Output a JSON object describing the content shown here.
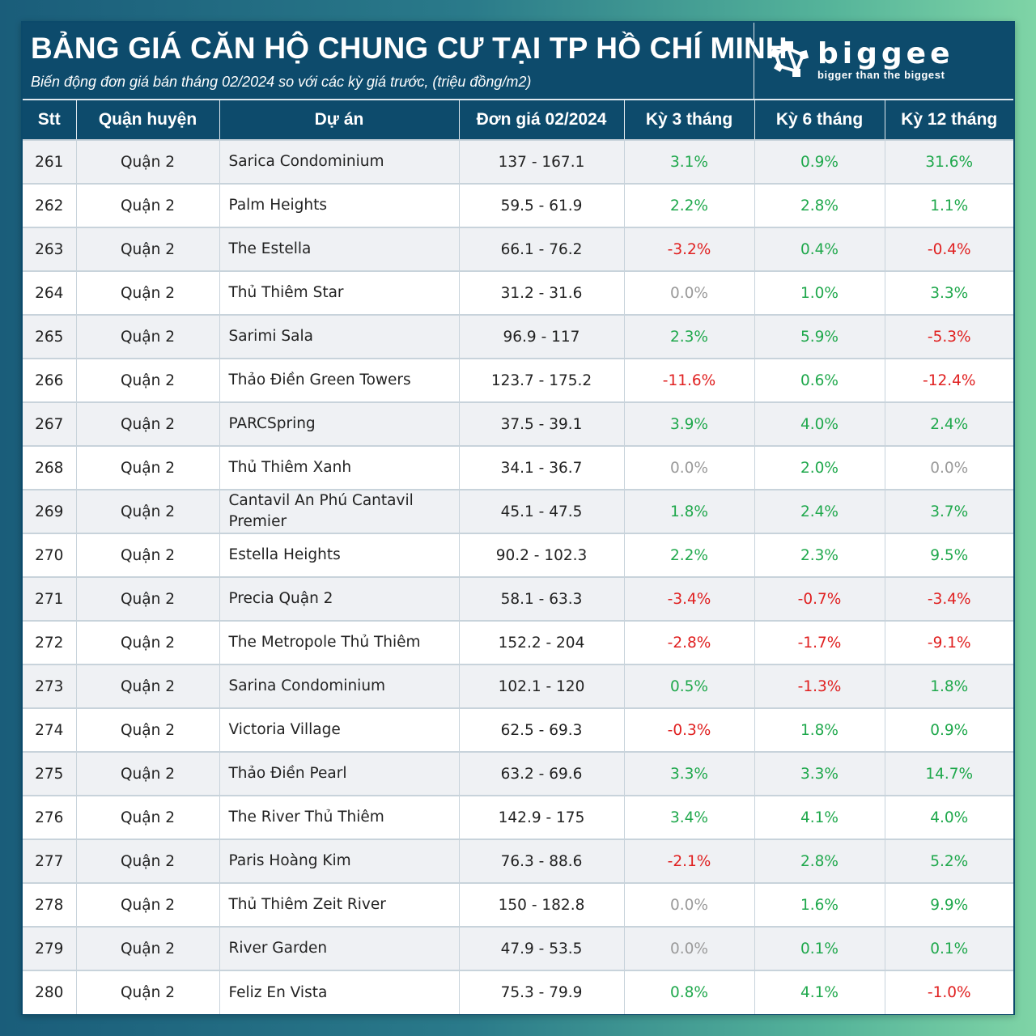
{
  "header": {
    "title": "BẢNG GIÁ CĂN HỘ CHUNG CƯ TẠI TP HỒ CHÍ MINH",
    "subtitle": "Biến động đơn giá bán tháng 02/2024 so với các kỳ giá trước, (triệu đồng/m2)",
    "brand": "biggee",
    "tagline": "bigger than the biggest",
    "logo_icon": "biggee-logo-icon"
  },
  "colors": {
    "header_bg": "#0d4b6c",
    "positive": "#1fa84c",
    "negative": "#e02020",
    "zero": "#9a9a9a",
    "row_alt": "#eff1f4"
  },
  "table": {
    "columns": [
      "Stt",
      "Quận huyện",
      "Dự án",
      "Đơn giá 02/2024",
      "Kỳ 3 tháng",
      "Kỳ 6 tháng",
      "Kỳ 12 tháng"
    ],
    "rows": [
      [
        "261",
        "Quận 2",
        "Sarica Condominium",
        "137 - 167.1",
        "3.1%",
        "0.9%",
        "31.6%"
      ],
      [
        "262",
        "Quận 2",
        "Palm Heights",
        "59.5 - 61.9",
        "2.2%",
        "2.8%",
        "1.1%"
      ],
      [
        "263",
        "Quận 2",
        "The Estella",
        "66.1 - 76.2",
        "-3.2%",
        "0.4%",
        "-0.4%"
      ],
      [
        "264",
        "Quận 2",
        "Thủ Thiêm Star",
        "31.2 - 31.6",
        "0.0%",
        "1.0%",
        "3.3%"
      ],
      [
        "265",
        "Quận 2",
        "Sarimi Sala",
        "96.9 - 117",
        "2.3%",
        "5.9%",
        "-5.3%"
      ],
      [
        "266",
        "Quận 2",
        "Thảo Điền Green Towers",
        "123.7 - 175.2",
        "-11.6%",
        "0.6%",
        "-12.4%"
      ],
      [
        "267",
        "Quận 2",
        "PARCSpring",
        "37.5 - 39.1",
        "3.9%",
        "4.0%",
        "2.4%"
      ],
      [
        "268",
        "Quận 2",
        "Thủ Thiêm Xanh",
        "34.1 - 36.7",
        "0.0%",
        "2.0%",
        "0.0%"
      ],
      [
        "269",
        "Quận 2",
        "Cantavil An Phú Cantavil Premier",
        "45.1 - 47.5",
        "1.8%",
        "2.4%",
        "3.7%"
      ],
      [
        "270",
        "Quận 2",
        "Estella Heights",
        "90.2 - 102.3",
        "2.2%",
        "2.3%",
        "9.5%"
      ],
      [
        "271",
        "Quận 2",
        "Precia Quận 2",
        "58.1 - 63.3",
        "-3.4%",
        "-0.7%",
        "-3.4%"
      ],
      [
        "272",
        "Quận 2",
        "The Metropole Thủ Thiêm",
        "152.2 - 204",
        "-2.8%",
        "-1.7%",
        "-9.1%"
      ],
      [
        "273",
        "Quận 2",
        "Sarina Condominium",
        "102.1 - 120",
        "0.5%",
        "-1.3%",
        "1.8%"
      ],
      [
        "274",
        "Quận 2",
        "Victoria Village",
        "62.5 - 69.3",
        "-0.3%",
        "1.8%",
        "0.9%"
      ],
      [
        "275",
        "Quận 2",
        "Thảo Điền Pearl",
        "63.2 - 69.6",
        "3.3%",
        "3.3%",
        "14.7%"
      ],
      [
        "276",
        "Quận 2",
        "The River Thủ Thiêm",
        "142.9 - 175",
        "3.4%",
        "4.1%",
        "4.0%"
      ],
      [
        "277",
        "Quận 2",
        "Paris Hoàng Kim",
        "76.3 - 88.6",
        "-2.1%",
        "2.8%",
        "5.2%"
      ],
      [
        "278",
        "Quận 2",
        "Thủ Thiêm Zeit River",
        "150 - 182.8",
        "0.0%",
        "1.6%",
        "9.9%"
      ],
      [
        "279",
        "Quận 2",
        "River Garden",
        "47.9 - 53.5",
        "0.0%",
        "0.1%",
        "0.1%"
      ],
      [
        "280",
        "Quận 2",
        "Feliz En Vista",
        "75.3 - 79.9",
        "0.8%",
        "4.1%",
        "-1.0%"
      ]
    ]
  }
}
